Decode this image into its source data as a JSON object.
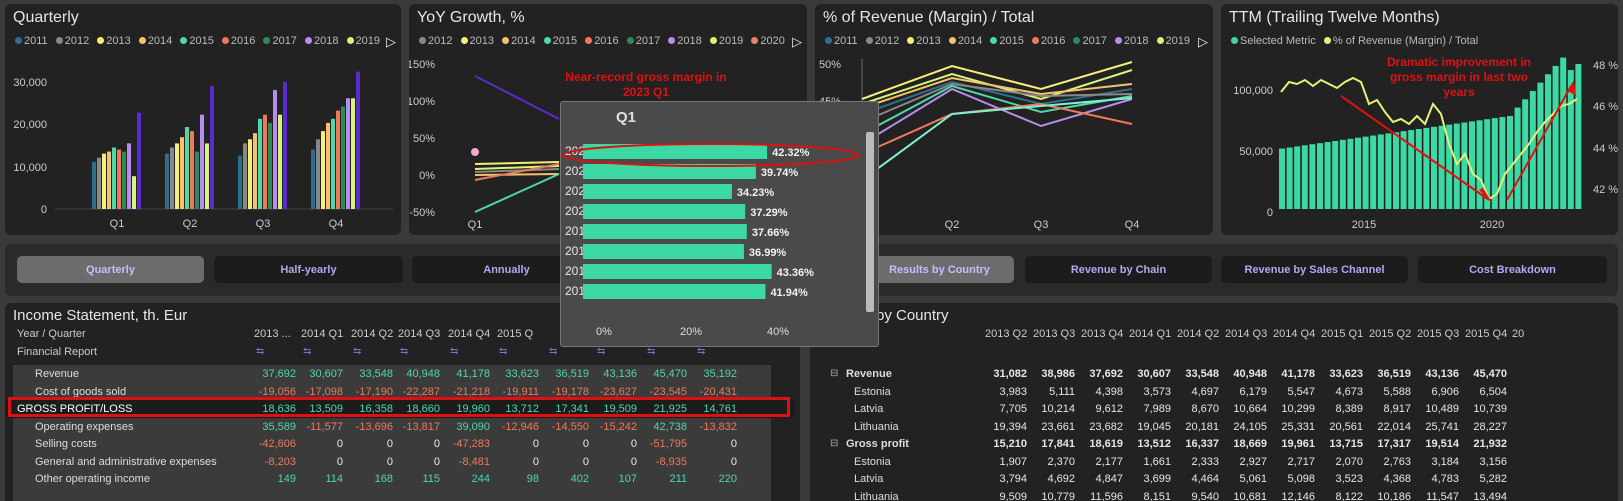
{
  "colors": {
    "y2011": "#2f6f8e",
    "y2012": "#888888",
    "y2013": "#f5ef7a",
    "y2014": "#f5c26b",
    "y2015": "#4cd9a5",
    "y2016": "#f0785a",
    "y2017": "#2e8b57",
    "y2018": "#b98cf0",
    "y2019": "#d6f57a",
    "y2020": "#f08060",
    "purple": "#5a2bd0",
    "accent": "#e01010",
    "teal": "#3dd9a5"
  },
  "quarterly": {
    "title": "Quarterly",
    "legend": [
      "2011",
      "2012",
      "2013",
      "2014",
      "2015",
      "2016",
      "2017",
      "2018",
      "2019"
    ],
    "yticks": [
      "30,000",
      "20,000",
      "10,000",
      "0"
    ],
    "categories": [
      "Q1",
      "Q2",
      "Q3",
      "Q4"
    ]
  },
  "yoy": {
    "title": "YoY Growth, %",
    "legend": [
      "2012",
      "2013",
      "2014",
      "2015",
      "2016",
      "2017",
      "2018",
      "2019",
      "2020"
    ],
    "yticks": [
      "150%",
      "100%",
      "50%",
      "0%",
      "-50%"
    ],
    "xlabel_first": "Q1",
    "annotation": [
      "Near-record gross margin in",
      "2023 Q1"
    ]
  },
  "margin": {
    "title": "% of Revenue (Margin) / Total",
    "legend": [
      "2011",
      "2012",
      "2013",
      "2014",
      "2015",
      "2016",
      "2017",
      "2018",
      "2019"
    ],
    "yticks": [
      "50%",
      "45%"
    ],
    "categories": [
      "Q1",
      "Q2",
      "Q3",
      "Q4"
    ]
  },
  "ttm": {
    "title": "TTM (Trailing Twelve Months)",
    "legend": [
      "Selected Metric",
      "% of Revenue (Margin) / Total"
    ],
    "yticks_left": [
      "100,000",
      "50,000",
      "0"
    ],
    "yticks_right": [
      "48 %",
      "46 %",
      "44 %",
      "42 %"
    ],
    "xticks": [
      "2015",
      "2020"
    ],
    "annotation": [
      "Dramatic improvement in",
      "gross margin in last two",
      "years"
    ]
  },
  "tabs": [
    "Quarterly",
    "Half-yearly",
    "Annually",
    "Results by Country",
    "Revenue by Chain",
    "Revenue by Sales Channel",
    "Cost Breakdown"
  ],
  "income": {
    "title": "Income Statement, th. Eur",
    "header_label": "Year / Quarter",
    "sub_label": "Financial Report",
    "columns": [
      "2013 ...",
      "2014 Q1",
      "2014 Q2",
      "2014 Q3",
      "2014 Q4",
      "2015 Q",
      "",
      "",
      "",
      ""
    ],
    "rows": [
      {
        "label": "Revenue",
        "values": [
          "37,692",
          "30,607",
          "33,548",
          "40,948",
          "41,178",
          "33,623",
          "36,519",
          "43,136",
          "45,470",
          "35,192"
        ]
      },
      {
        "label": "Cost of goods sold",
        "values": [
          "-19,056",
          "-17,098",
          "-17,190",
          "-22,287",
          "-21,218",
          "-19,911",
          "-19,178",
          "-23,627",
          "-23,545",
          "-20,431"
        ]
      },
      {
        "label": "GROSS PROFIT/LOSS",
        "values": [
          "18,636",
          "13,509",
          "16,358",
          "18,660",
          "19,960",
          "13,712",
          "17,341",
          "19,509",
          "21,925",
          "14,761"
        ]
      },
      {
        "label": "Operating expenses",
        "values": [
          "35,589",
          "-11,577",
          "-13,696",
          "-13,817",
          "39,090",
          "-12,946",
          "-14,550",
          "-15,242",
          "42,738",
          "-13,832"
        ]
      },
      {
        "label": "Selling costs",
        "values": [
          "-42,606",
          "0",
          "0",
          "0",
          "-47,283",
          "0",
          "0",
          "0",
          "-51,795",
          "0"
        ]
      },
      {
        "label": "General and administrative expenses",
        "values": [
          "-8,203",
          "0",
          "0",
          "0",
          "-8,481",
          "0",
          "0",
          "0",
          "-8,935",
          "0"
        ]
      },
      {
        "label": "Other operating income",
        "values": [
          "149",
          "114",
          "168",
          "115",
          "244",
          "98",
          "402",
          "107",
          "211",
          "220"
        ]
      }
    ]
  },
  "country": {
    "title": "by Country",
    "columns": [
      "2013 Q2",
      "2013 Q3",
      "2013 Q4",
      "2014 Q1",
      "2014 Q2",
      "2014 Q3",
      "2014 Q4",
      "2015 Q1",
      "2015 Q2",
      "2015 Q3",
      "2015 Q4",
      "20"
    ],
    "rows": [
      {
        "label": "Revenue",
        "group": true,
        "values": [
          "31,082",
          "38,986",
          "37,692",
          "30,607",
          "33,548",
          "40,948",
          "41,178",
          "33,623",
          "36,519",
          "43,136",
          "45,470"
        ]
      },
      {
        "label": "Estonia",
        "group": false,
        "values": [
          "3,983",
          "5,111",
          "4,398",
          "3,573",
          "4,697",
          "6,179",
          "5,547",
          "4,673",
          "5,588",
          "6,906",
          "6,504"
        ]
      },
      {
        "label": "Latvia",
        "group": false,
        "values": [
          "7,705",
          "10,214",
          "9,612",
          "7,989",
          "8,670",
          "10,664",
          "10,299",
          "8,389",
          "8,917",
          "10,489",
          "10,739"
        ]
      },
      {
        "label": "Lithuania",
        "group": false,
        "values": [
          "19,394",
          "23,661",
          "23,682",
          "19,045",
          "20,181",
          "24,105",
          "25,331",
          "20,561",
          "22,014",
          "25,741",
          "28,227"
        ]
      },
      {
        "label": "Gross profit",
        "group": true,
        "values": [
          "15,210",
          "17,841",
          "18,619",
          "13,512",
          "16,337",
          "18,669",
          "19,961",
          "13,715",
          "17,317",
          "19,514",
          "21,932"
        ]
      },
      {
        "label": "Estonia",
        "group": false,
        "values": [
          "1,907",
          "2,370",
          "2,177",
          "1,661",
          "2,333",
          "2,927",
          "2,717",
          "2,070",
          "2,763",
          "3,184",
          "3,156"
        ]
      },
      {
        "label": "Latvia",
        "group": false,
        "values": [
          "3,794",
          "4,692",
          "4,847",
          "3,699",
          "4,464",
          "5,061",
          "5,098",
          "3,523",
          "4,368",
          "4,783",
          "5,282"
        ]
      },
      {
        "label": "Lithuania",
        "group": false,
        "values": [
          "9,509",
          "10,779",
          "11,596",
          "8,151",
          "9,540",
          "10,681",
          "12,146",
          "8,122",
          "10,186",
          "11,547",
          "13,494"
        ]
      }
    ]
  },
  "popup": {
    "title": "Q1",
    "xticks": [
      "0%",
      "20%",
      "40%"
    ]
  },
  "chart_data": [
    {
      "type": "bar",
      "title": "Q1",
      "categories": [
        "2023",
        "2022",
        "2021",
        "2020",
        "2019",
        "2018",
        "2017",
        "2016"
      ],
      "values": [
        42.32,
        39.74,
        34.23,
        37.29,
        37.66,
        36.99,
        43.36,
        41.94
      ],
      "labels": [
        "42.32%",
        "39.74%",
        "34.23%",
        "37.29%",
        "37.66%",
        "36.99%",
        "43.36%",
        "41.94%"
      ],
      "xlim": [
        0,
        50
      ]
    }
  ]
}
